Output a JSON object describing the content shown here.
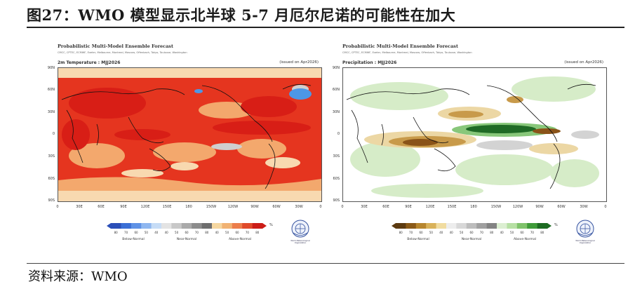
{
  "header": {
    "title": "图27：WMO 模型显示北半球 5-7 月厄尔尼诺的可能性在加大"
  },
  "footer": {
    "source": "资料来源：WMO"
  },
  "panels": [
    {
      "id": "temperature",
      "title": "Probabilistic Multi-Model Ensemble Forecast",
      "centers": "CMCC, CPTEC, ECMWF, Exeter, Melbourne, Montreal, Moscow, Offenbach, Tokyo, Toulouse, Washington",
      "variable": "2m Temperature : MJJ2026",
      "issued": "(issued on Apr2026)",
      "unit": "%",
      "colorbar_labels": [
        "80",
        "70",
        "60",
        "50",
        "40",
        "40",
        "50",
        "60",
        "70",
        "80",
        "40",
        "50",
        "60",
        "70",
        "80"
      ],
      "categories": [
        "Below-Normal",
        "Near-Normal",
        "Above-Normal"
      ],
      "colorbar_colors": [
        "#2b4fb8",
        "#3b6fd6",
        "#5f92e6",
        "#8fb7f0",
        "#c6dcf6",
        "#e3e3e3",
        "#c8c8c8",
        "#aaaaaa",
        "#8c8c8c",
        "#6e6e6e",
        "#f6d7a0",
        "#f1b273",
        "#ec7d4a",
        "#e04a2a",
        "#cc1d17"
      ],
      "colors": {
        "land": "#e8231b",
        "ocean_warm": "#e5351f",
        "ocean_mild": "#f3a86d",
        "ocean_pale": "#f8d9b0",
        "cool": "#4d97e6",
        "gray": "#cfcfcf"
      }
    },
    {
      "id": "precipitation",
      "title": "Probabilistic Multi-Model Ensemble Forecast",
      "centers": "CMCC, CPTEC, ECMWF, Exeter, Melbourne, Montreal, Moscow, Offenbach, Tokyo, Toulouse, Washington",
      "variable": "Precipitation : MJJ2026",
      "issued": "(issued on Apr2026)",
      "unit": "%",
      "colorbar_labels": [
        "80",
        "70",
        "60",
        "50",
        "40",
        "40",
        "50",
        "60",
        "70",
        "80",
        "40",
        "50",
        "60",
        "70",
        "80"
      ],
      "categories": [
        "Below-Normal",
        "Near-Normal",
        "Above-Normal"
      ],
      "colorbar_colors": [
        "#5c3a10",
        "#8a5a18",
        "#b7862e",
        "#d9b25a",
        "#f1dca0",
        "#ededed",
        "#d8d8d8",
        "#bdbdbd",
        "#a0a0a0",
        "#838383",
        "#dcefd2",
        "#b7e0a4",
        "#7fc36b",
        "#3f9b39",
        "#1d6b22"
      ],
      "colors": {
        "dry_dark": "#8a5318",
        "dry": "#c89a4a",
        "dry_pale": "#ecd7a4",
        "wet_dark": "#1f6a25",
        "wet": "#88c77a",
        "wet_pale": "#d6ecc8",
        "gray": "#d3d3d3"
      }
    }
  ],
  "axes": {
    "y": [
      "90N",
      "60N",
      "30N",
      "0",
      "30S",
      "60S",
      "90S"
    ],
    "x": [
      "0",
      "30E",
      "60E",
      "90E",
      "120E",
      "150E",
      "180",
      "150W",
      "120W",
      "90W",
      "60W",
      "30W",
      "0"
    ]
  },
  "logo_text": "World Meteorological Organization"
}
